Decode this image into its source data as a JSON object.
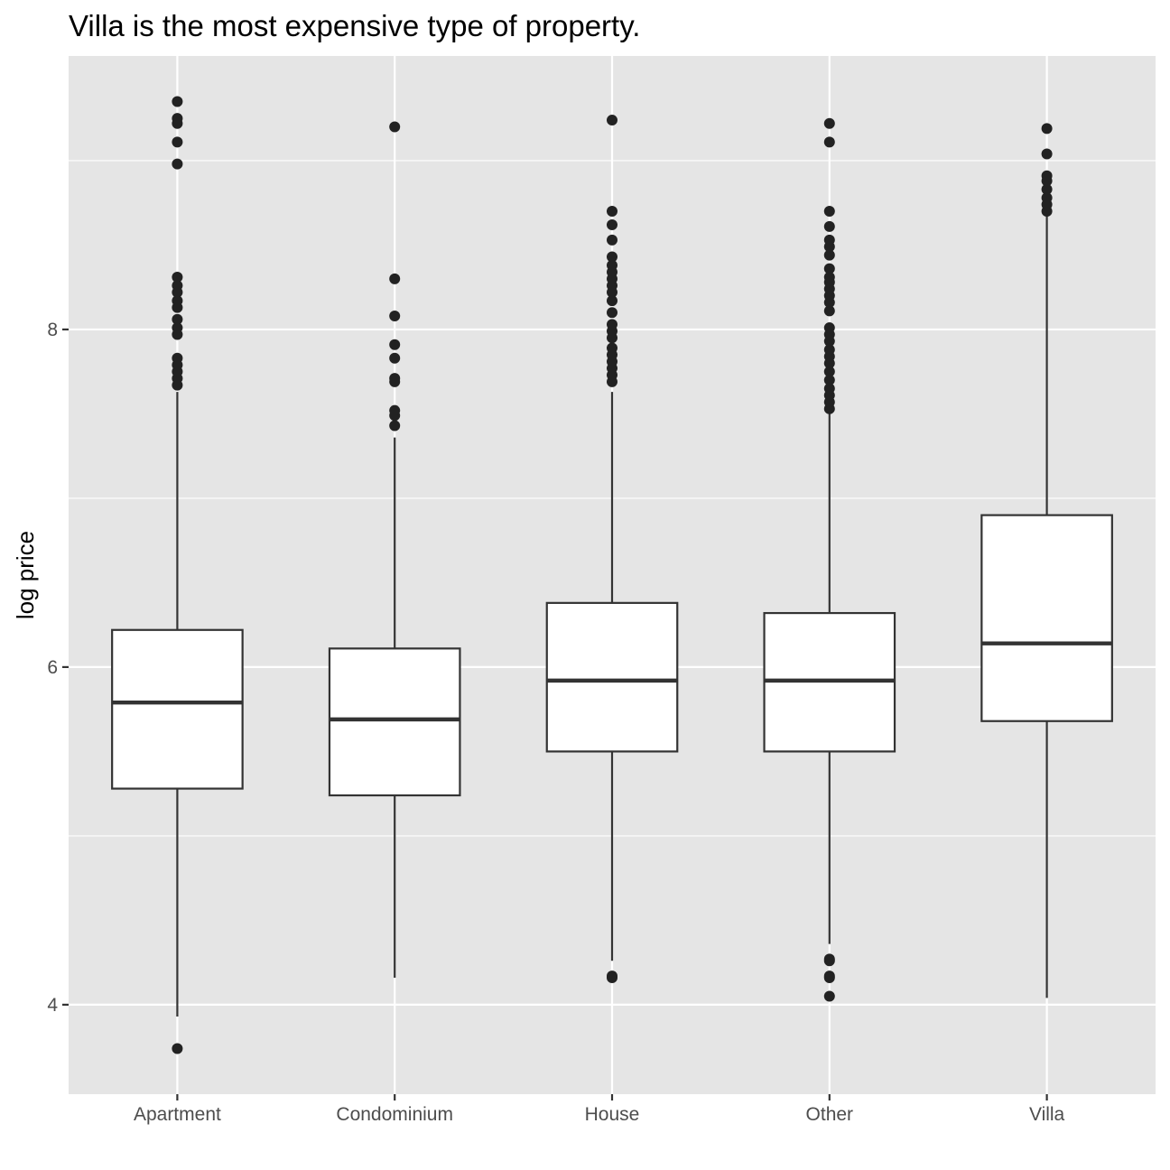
{
  "chart_data": {
    "type": "boxplot",
    "title": "Villa is the most expensive type of property.",
    "xlabel": "",
    "ylabel": "log price",
    "ylim": [
      3.47,
      9.62
    ],
    "y_ticks": [
      4,
      6,
      8
    ],
    "y_minor_ticks": [
      5,
      7,
      9
    ],
    "grid": true,
    "panel_background": "#e5e5e5",
    "grid_color": "#ffffff",
    "box_fill": "#ffffff",
    "line_color": "#333333",
    "point_color": "#222222",
    "categories": [
      "Apartment",
      "Condominium",
      "House",
      "Other",
      "Villa"
    ],
    "boxes": [
      {
        "category": "Apartment",
        "whisker_low": 3.93,
        "q1": 5.28,
        "median": 5.79,
        "q3": 6.22,
        "whisker_high": 7.63,
        "outliers": [
          3.74,
          7.67,
          7.71,
          7.75,
          7.79,
          7.83,
          7.97,
          8.01,
          8.06,
          8.13,
          8.17,
          8.22,
          8.26,
          8.31,
          8.98,
          9.11,
          9.22,
          9.25,
          9.35
        ]
      },
      {
        "category": "Condominium",
        "whisker_low": 4.16,
        "q1": 5.24,
        "median": 5.69,
        "q3": 6.11,
        "whisker_high": 7.36,
        "outliers": [
          7.43,
          7.49,
          7.52,
          7.69,
          7.71,
          7.83,
          7.91,
          8.08,
          8.3,
          9.2
        ]
      },
      {
        "category": "House",
        "whisker_low": 4.26,
        "q1": 5.5,
        "median": 5.92,
        "q3": 6.38,
        "whisker_high": 7.63,
        "outliers": [
          4.16,
          4.17,
          7.69,
          7.73,
          7.77,
          7.81,
          7.85,
          7.89,
          7.95,
          7.99,
          8.03,
          8.1,
          8.17,
          8.22,
          8.26,
          8.3,
          8.34,
          8.38,
          8.43,
          8.53,
          8.62,
          8.7,
          9.24
        ]
      },
      {
        "category": "Other",
        "whisker_low": 4.36,
        "q1": 5.5,
        "median": 5.92,
        "q3": 6.32,
        "whisker_high": 7.5,
        "outliers": [
          4.05,
          4.16,
          4.17,
          4.26,
          4.27,
          7.53,
          7.57,
          7.61,
          7.65,
          7.7,
          7.75,
          7.8,
          7.84,
          7.88,
          7.93,
          7.97,
          8.01,
          8.11,
          8.16,
          8.2,
          8.24,
          8.28,
          8.31,
          8.36,
          8.44,
          8.49,
          8.53,
          8.61,
          8.7,
          9.11,
          9.22
        ]
      },
      {
        "category": "Villa",
        "whisker_low": 4.04,
        "q1": 5.68,
        "median": 6.14,
        "q3": 6.9,
        "whisker_high": 8.68,
        "outliers": [
          8.7,
          8.74,
          8.78,
          8.83,
          8.88,
          8.91,
          9.04,
          9.19
        ]
      }
    ]
  }
}
